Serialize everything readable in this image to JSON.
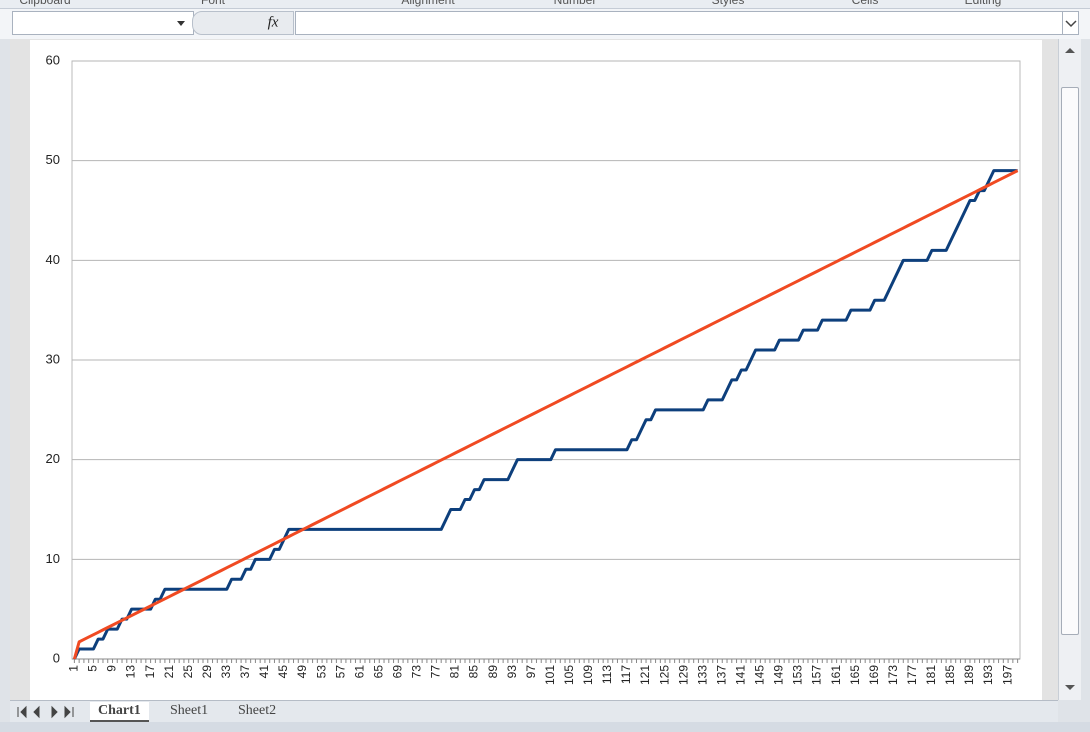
{
  "ui": {
    "ribbon_groups": [
      "Clipboard",
      "Font",
      "Alignment",
      "Number",
      "Styles",
      "Cells",
      "Editing"
    ],
    "sheet_tabs": [
      "Chart1",
      "Sheet1",
      "Sheet2"
    ]
  },
  "chart_data": {
    "type": "line",
    "categories": [
      "1",
      null,
      null,
      null,
      "5",
      null,
      null,
      null,
      "9",
      null,
      null,
      null,
      "13",
      null,
      null,
      null,
      "17",
      null,
      null,
      null,
      "21",
      null,
      null,
      null,
      "25",
      null,
      null,
      null,
      "29",
      null,
      null,
      null,
      "33",
      null,
      null,
      null,
      "37",
      null,
      null,
      null,
      "41",
      null,
      null,
      null,
      "45",
      null,
      null,
      null,
      "49",
      null,
      null,
      null,
      "53",
      null,
      null,
      null,
      "57",
      null,
      null,
      null,
      "61",
      null,
      null,
      null,
      "65",
      null,
      null,
      null,
      "69",
      null,
      null,
      null,
      "73",
      null,
      null,
      null,
      "77",
      null,
      null,
      null,
      "81",
      null,
      null,
      null,
      "85",
      null,
      null,
      null,
      "89",
      null,
      null,
      null,
      "93",
      null,
      null,
      null,
      "97",
      null,
      null,
      null,
      "101",
      null,
      null,
      null,
      "105",
      null,
      null,
      null,
      "109",
      null,
      null,
      null,
      "113",
      null,
      null,
      null,
      "117",
      null,
      null,
      null,
      "121",
      null,
      null,
      null,
      "125",
      null,
      null,
      null,
      "129",
      null,
      null,
      null,
      "133",
      null,
      null,
      null,
      "137",
      null,
      null,
      null,
      "141",
      null,
      null,
      null,
      "145",
      null,
      null,
      null,
      "149",
      null,
      null,
      null,
      "153",
      null,
      null,
      null,
      "157",
      null,
      null,
      null,
      "161",
      null,
      null,
      null,
      "165",
      null,
      null,
      null,
      "169",
      null,
      null,
      null,
      "173",
      null,
      null,
      null,
      "177",
      null,
      null,
      null,
      "181",
      null,
      null,
      null,
      "185",
      null,
      null,
      null,
      "189",
      null,
      null,
      null,
      "193",
      null,
      null,
      null,
      "197",
      null,
      null
    ],
    "series": [
      {
        "color": "#0d3f7c",
        "values": [
          0,
          1,
          1,
          1,
          1,
          2,
          2,
          3,
          3,
          3,
          4,
          4,
          5,
          5,
          5,
          5,
          5,
          6,
          6,
          7,
          7,
          7,
          7,
          7,
          7,
          7,
          7,
          7,
          7,
          7,
          7,
          7,
          7,
          8,
          8,
          8,
          9,
          9,
          10,
          10,
          10,
          10,
          11,
          11,
          12,
          13,
          13,
          13,
          13,
          13,
          13,
          13,
          13,
          13,
          13,
          13,
          13,
          13,
          13,
          13,
          13,
          13,
          13,
          13,
          13,
          13,
          13,
          13,
          13,
          13,
          13,
          13,
          13,
          13,
          13,
          13,
          13,
          13,
          14,
          15,
          15,
          15,
          16,
          16,
          17,
          17,
          18,
          18,
          18,
          18,
          18,
          18,
          19,
          20,
          20,
          20,
          20,
          20,
          20,
          20,
          20,
          21,
          21,
          21,
          21,
          21,
          21,
          21,
          21,
          21,
          21,
          21,
          21,
          21,
          21,
          21,
          21,
          22,
          22,
          23,
          24,
          24,
          25,
          25,
          25,
          25,
          25,
          25,
          25,
          25,
          25,
          25,
          25,
          26,
          26,
          26,
          26,
          27,
          28,
          28,
          29,
          29,
          30,
          31,
          31,
          31,
          31,
          31,
          32,
          32,
          32,
          32,
          32,
          33,
          33,
          33,
          33,
          34,
          34,
          34,
          34,
          34,
          34,
          35,
          35,
          35,
          35,
          35,
          36,
          36,
          36,
          37,
          38,
          39,
          40,
          40,
          40,
          40,
          40,
          40,
          41,
          41,
          41,
          41,
          42,
          43,
          44,
          45,
          46,
          46,
          47,
          47,
          48,
          49,
          49,
          49,
          49,
          49,
          49
        ]
      },
      {
        "color": "#f04a22",
        "values": [
          0,
          1.72,
          1.96,
          2.2,
          2.44,
          2.68,
          2.92,
          3.16,
          3.4,
          3.64,
          3.88,
          4.12,
          4.36,
          4.6,
          4.84,
          5.08,
          5.32,
          5.56,
          5.8,
          6.04,
          6.28,
          6.52,
          6.76,
          7,
          7.24,
          7.48,
          7.72,
          7.96,
          8.2,
          8.44,
          8.68,
          8.92,
          9.16,
          9.4,
          9.64,
          9.88,
          10.12,
          10.36,
          10.6,
          10.84,
          11.08,
          11.32,
          11.56,
          11.8,
          12.04,
          12.28,
          12.52,
          12.76,
          13,
          13.24,
          13.48,
          13.72,
          13.96,
          14.2,
          14.44,
          14.68,
          14.92,
          15.16,
          15.4,
          15.64,
          15.88,
          16.12,
          16.36,
          16.6,
          16.84,
          17.08,
          17.32,
          17.56,
          17.8,
          18.04,
          18.28,
          18.52,
          18.76,
          19,
          19.24,
          19.48,
          19.72,
          19.96,
          20.2,
          20.44,
          20.68,
          20.92,
          21.16,
          21.4,
          21.64,
          21.88,
          22.12,
          22.36,
          22.6,
          22.84,
          23.08,
          23.32,
          23.56,
          23.8,
          24.04,
          24.28,
          24.52,
          24.76,
          25,
          25.24,
          25.48,
          25.72,
          25.96,
          26.2,
          26.44,
          26.68,
          26.92,
          27.16,
          27.4,
          27.64,
          27.88,
          28.12,
          28.36,
          28.6,
          28.84,
          29.08,
          29.32,
          29.56,
          29.8,
          30.04,
          30.28,
          30.52,
          30.76,
          31,
          31.24,
          31.48,
          31.72,
          31.96,
          32.2,
          32.44,
          32.68,
          32.92,
          33.16,
          33.4,
          33.64,
          33.88,
          34.12,
          34.36,
          34.6,
          34.84,
          35.08,
          35.32,
          35.56,
          35.8,
          36.04,
          36.28,
          36.52,
          36.76,
          37,
          37.24,
          37.48,
          37.72,
          37.96,
          38.2,
          38.44,
          38.68,
          38.92,
          39.16,
          39.4,
          39.64,
          39.88,
          40.12,
          40.36,
          40.6,
          40.84,
          41.08,
          41.32,
          41.56,
          41.8,
          42.04,
          42.28,
          42.52,
          42.76,
          43,
          43.24,
          43.48,
          43.72,
          43.96,
          44.2,
          44.44,
          44.68,
          44.92,
          45.16,
          45.4,
          45.64,
          45.88,
          46.12,
          46.36,
          46.6,
          46.84,
          47.08,
          47.32,
          47.56,
          47.8,
          48.04,
          48.28,
          48.52,
          48.76,
          49
        ]
      }
    ],
    "ylim": [
      0,
      60
    ],
    "yticks": [
      0,
      10,
      20,
      30,
      40,
      50,
      60
    ],
    "grid": true
  }
}
